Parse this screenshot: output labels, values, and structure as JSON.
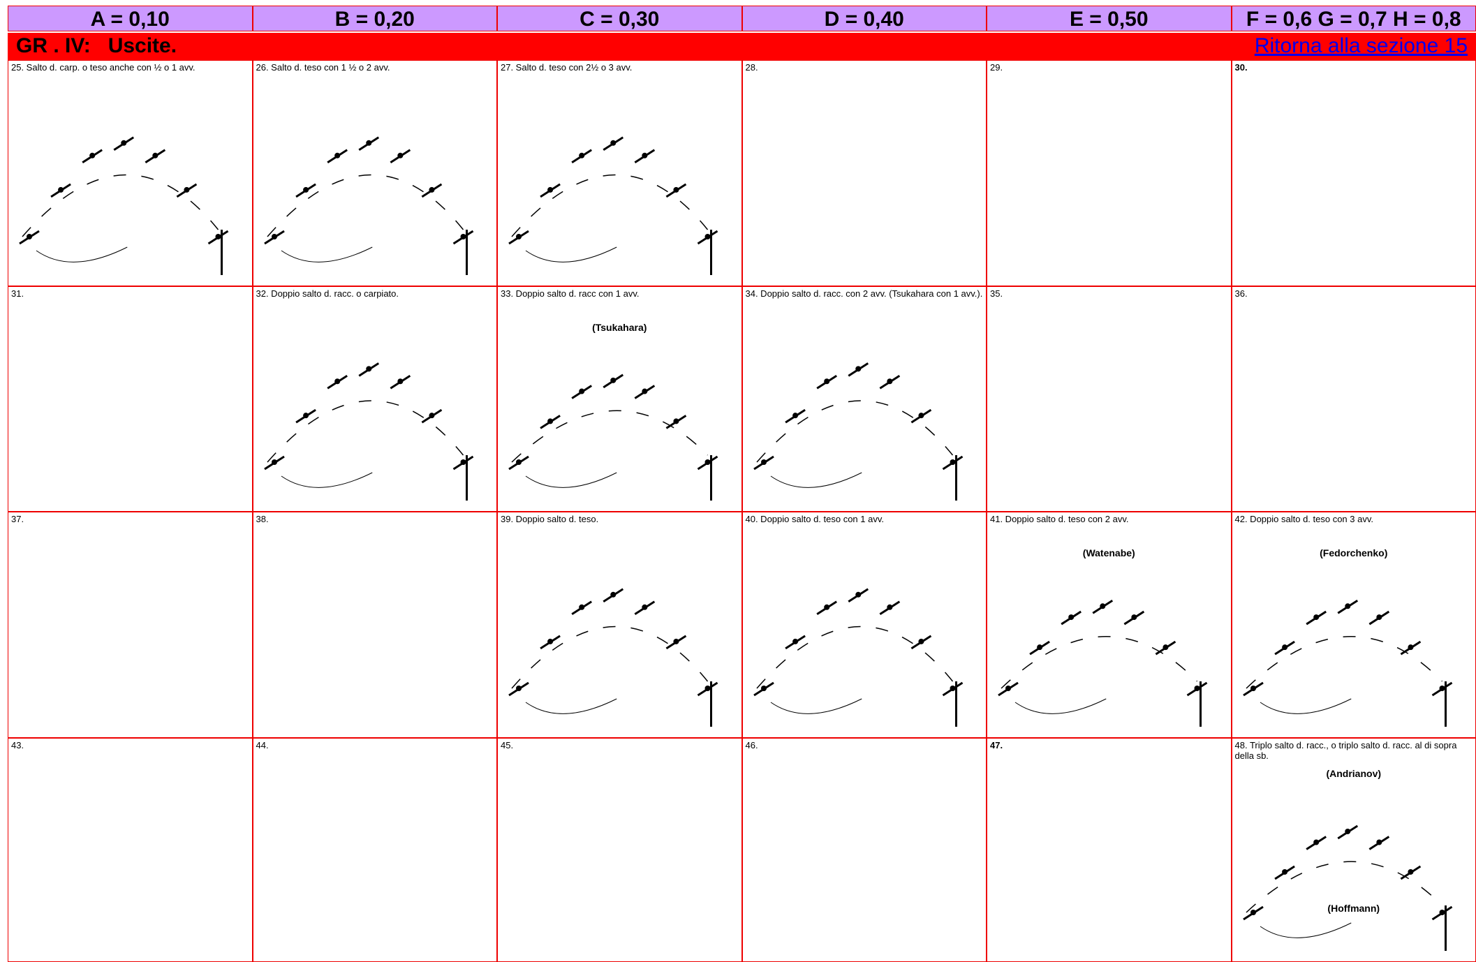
{
  "header": {
    "columns": [
      "A = 0,10",
      "B = 0,20",
      "C = 0,30",
      "D = 0,40",
      "E = 0,50",
      "F = 0,6 G = 0,7 H = 0,8"
    ]
  },
  "section": {
    "title": "GR . IV:   Uscite.",
    "link": "Ritorna alla sezione 15"
  },
  "grid": {
    "rows": [
      [
        {
          "caption": "25.  Salto d. carp. o teso anche con ½  o 1 avv."
        },
        {
          "caption": "26.  Salto d. teso con 1 ½  o 2 avv."
        },
        {
          "caption": "27.  Salto d. teso con 2½  o 3 avv."
        },
        {
          "caption": "28."
        },
        {
          "caption": "29."
        },
        {
          "caption": "30."
        }
      ],
      [
        {
          "caption": "31."
        },
        {
          "caption": "32.  Doppio salto d. racc. o carpiato."
        },
        {
          "caption": "33.  Doppio salto d. racc con 1 avv.",
          "names": [
            "(Tsukahara)"
          ]
        },
        {
          "caption": "34. Doppio salto d. racc. con 2 avv. (Tsukahara con 1 avv.)."
        },
        {
          "caption": "35."
        },
        {
          "caption": "36."
        }
      ],
      [
        {
          "caption": "37."
        },
        {
          "caption": "38."
        },
        {
          "caption": "39.  Doppio salto d. teso."
        },
        {
          "caption": "40.  Doppio salto d. teso con 1 avv."
        },
        {
          "caption": "41.  Doppio salto d. teso con 2 avv.",
          "names": [
            "(Watenabe)"
          ]
        },
        {
          "caption": "42.  Doppio salto d. teso con 3 avv.",
          "names": [
            "(Fedorchenko)"
          ]
        }
      ],
      [
        {
          "caption": "43."
        },
        {
          "caption": "44."
        },
        {
          "caption": "45."
        },
        {
          "caption": "46."
        },
        {
          "caption": "47."
        },
        {
          "caption": "48.  Triplo salto d. racc., o triplo salto d. racc. al di sopra della sb.",
          "names": [
            "(Andrianov)",
            "(Hoffmann)"
          ]
        }
      ]
    ]
  }
}
